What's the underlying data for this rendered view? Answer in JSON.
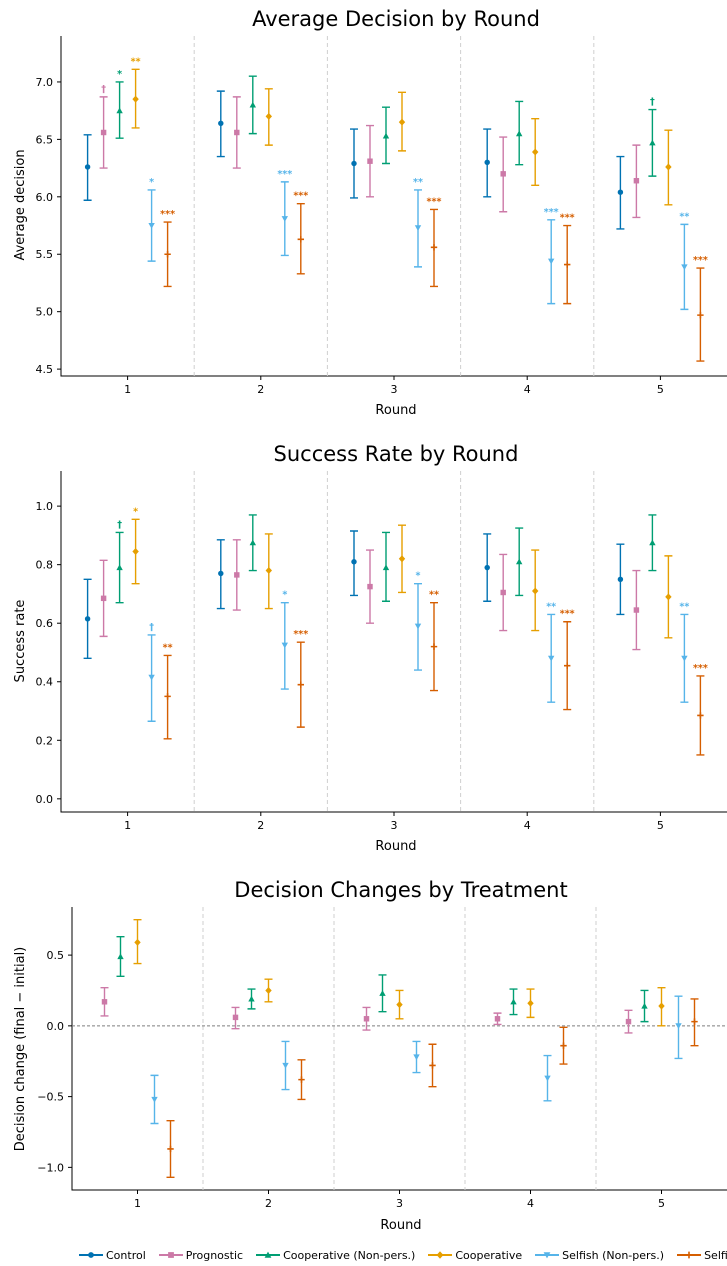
{
  "colors": {
    "Control": "#0072b2",
    "Prognostic": "#cc79a7",
    "Cooperative (Non-pers.)": "#009e73",
    "Cooperative": "#e69f00",
    "Selfish (Non-pers.)": "#56b4e9",
    "Selfish": "#d55e00"
  },
  "legend": [
    {
      "name": "Control",
      "marker": "circle"
    },
    {
      "name": "Prognostic",
      "marker": "square"
    },
    {
      "name": "Cooperative (Non-pers.)",
      "marker": "triangle-up"
    },
    {
      "name": "Cooperative",
      "marker": "diamond"
    },
    {
      "name": "Selfish (Non-pers.)",
      "marker": "triangle-down"
    },
    {
      "name": "Selfish",
      "marker": "plus"
    }
  ],
  "chart_data": [
    {
      "type": "scatter",
      "title": "Average Decision by Round",
      "xlabel": "Round",
      "ylabel": "Average decision",
      "categories": [
        "1",
        "2",
        "3",
        "4",
        "5"
      ],
      "ylim": [
        4.44,
        7.4
      ],
      "yticks": [
        "4.5",
        "5.0",
        "5.5",
        "6.0",
        "6.5",
        "7.0"
      ],
      "series": [
        {
          "name": "Control",
          "values": [
            6.26,
            6.64,
            6.29,
            6.3,
            6.04
          ],
          "lower": [
            5.97,
            6.35,
            5.99,
            6.0,
            5.72
          ],
          "upper": [
            6.54,
            6.92,
            6.59,
            6.59,
            6.35
          ],
          "sig": [
            "",
            "",
            "",
            "",
            ""
          ]
        },
        {
          "name": "Prognostic",
          "values": [
            6.56,
            6.56,
            6.31,
            6.2,
            6.14
          ],
          "lower": [
            6.25,
            6.25,
            6.0,
            5.87,
            5.82
          ],
          "upper": [
            6.87,
            6.87,
            6.62,
            6.52,
            6.45
          ],
          "sig": [
            "†",
            "",
            "",
            "",
            ""
          ]
        },
        {
          "name": "Cooperative (Non-pers.)",
          "values": [
            6.75,
            6.8,
            6.53,
            6.55,
            6.47
          ],
          "lower": [
            6.51,
            6.55,
            6.29,
            6.28,
            6.18
          ],
          "upper": [
            7.0,
            7.05,
            6.78,
            6.83,
            6.76
          ],
          "sig": [
            "*",
            "",
            "",
            "",
            "†"
          ]
        },
        {
          "name": "Cooperative",
          "values": [
            6.85,
            6.7,
            6.65,
            6.39,
            6.26
          ],
          "lower": [
            6.6,
            6.45,
            6.4,
            6.1,
            5.93
          ],
          "upper": [
            7.11,
            6.94,
            6.91,
            6.68,
            6.58
          ],
          "sig": [
            "**",
            "",
            "",
            "",
            ""
          ]
        },
        {
          "name": "Selfish (Non-pers.)",
          "values": [
            5.75,
            5.81,
            5.73,
            5.44,
            5.39
          ],
          "lower": [
            5.44,
            5.49,
            5.39,
            5.07,
            5.02
          ],
          "upper": [
            6.06,
            6.13,
            6.06,
            5.8,
            5.76
          ],
          "sig": [
            "*",
            "***",
            "**",
            "***",
            "**"
          ]
        },
        {
          "name": "Selfish",
          "values": [
            5.5,
            5.63,
            5.56,
            5.41,
            4.97
          ],
          "lower": [
            5.22,
            5.33,
            5.22,
            5.07,
            4.57
          ],
          "upper": [
            5.78,
            5.94,
            5.89,
            5.75,
            5.38
          ],
          "sig": [
            "***",
            "***",
            "***",
            "***",
            "***"
          ]
        }
      ]
    },
    {
      "type": "scatter",
      "title": "Success Rate by Round",
      "xlabel": "Round",
      "ylabel": "Success rate",
      "categories": [
        "1",
        "2",
        "3",
        "4",
        "5"
      ],
      "ylim": [
        -0.045,
        1.12
      ],
      "yticks": [
        "0.0",
        "0.2",
        "0.4",
        "0.6",
        "0.8",
        "1.0"
      ],
      "series": [
        {
          "name": "Control",
          "values": [
            0.615,
            0.77,
            0.81,
            0.79,
            0.75
          ],
          "lower": [
            0.48,
            0.65,
            0.695,
            0.675,
            0.63
          ],
          "upper": [
            0.75,
            0.885,
            0.915,
            0.905,
            0.87
          ],
          "sig": [
            "",
            "",
            "",
            "",
            ""
          ]
        },
        {
          "name": "Prognostic",
          "values": [
            0.685,
            0.765,
            0.725,
            0.705,
            0.645
          ],
          "lower": [
            0.555,
            0.645,
            0.6,
            0.575,
            0.51
          ],
          "upper": [
            0.815,
            0.885,
            0.85,
            0.835,
            0.78
          ],
          "sig": [
            "",
            "",
            "",
            "",
            ""
          ]
        },
        {
          "name": "Cooperative (Non-pers.)",
          "values": [
            0.79,
            0.875,
            0.79,
            0.81,
            0.875
          ],
          "lower": [
            0.67,
            0.78,
            0.675,
            0.695,
            0.78
          ],
          "upper": [
            0.91,
            0.97,
            0.91,
            0.925,
            0.97
          ],
          "sig": [
            "†",
            "",
            "",
            "",
            ""
          ]
        },
        {
          "name": "Cooperative",
          "values": [
            0.845,
            0.78,
            0.82,
            0.71,
            0.69
          ],
          "lower": [
            0.735,
            0.65,
            0.705,
            0.575,
            0.55
          ],
          "upper": [
            0.955,
            0.905,
            0.935,
            0.85,
            0.83
          ],
          "sig": [
            "*",
            "",
            "",
            "",
            ""
          ]
        },
        {
          "name": "Selfish (Non-pers.)",
          "values": [
            0.415,
            0.525,
            0.59,
            0.48,
            0.48
          ],
          "lower": [
            0.265,
            0.375,
            0.44,
            0.33,
            0.33
          ],
          "upper": [
            0.56,
            0.67,
            0.735,
            0.63,
            0.63
          ],
          "sig": [
            "†",
            "*",
            "*",
            "**",
            "**"
          ]
        },
        {
          "name": "Selfish",
          "values": [
            0.35,
            0.39,
            0.52,
            0.455,
            0.285
          ],
          "lower": [
            0.205,
            0.245,
            0.37,
            0.305,
            0.15
          ],
          "upper": [
            0.49,
            0.535,
            0.67,
            0.605,
            0.42
          ],
          "sig": [
            "**",
            "***",
            "**",
            "***",
            "***"
          ]
        }
      ]
    },
    {
      "type": "scatter",
      "title": "Decision Changes by Treatment",
      "xlabel": "Round",
      "ylabel": "Decision change (final − initial)",
      "categories": [
        "1",
        "2",
        "3",
        "4",
        "5"
      ],
      "ylim": [
        -1.16,
        0.84
      ],
      "yticks": [
        "−1.0",
        "−0.5",
        "0.0",
        "0.5"
      ],
      "reference_line": 0,
      "series": [
        {
          "name": "Prognostic",
          "values": [
            0.17,
            0.06,
            0.05,
            0.05,
            0.03
          ],
          "lower": [
            0.07,
            -0.02,
            -0.03,
            0.01,
            -0.05
          ],
          "upper": [
            0.27,
            0.13,
            0.13,
            0.09,
            0.11
          ],
          "sig": [
            "",
            "",
            "",
            "",
            ""
          ]
        },
        {
          "name": "Cooperative (Non-pers.)",
          "values": [
            0.49,
            0.19,
            0.23,
            0.17,
            0.14
          ],
          "lower": [
            0.35,
            0.12,
            0.1,
            0.08,
            0.03
          ],
          "upper": [
            0.63,
            0.26,
            0.36,
            0.26,
            0.25
          ],
          "sig": [
            "",
            "",
            "",
            "",
            ""
          ]
        },
        {
          "name": "Cooperative",
          "values": [
            0.59,
            0.25,
            0.15,
            0.16,
            0.14
          ],
          "lower": [
            0.44,
            0.17,
            0.05,
            0.06,
            0.0
          ],
          "upper": [
            0.75,
            0.33,
            0.25,
            0.26,
            0.27
          ],
          "sig": [
            "",
            "",
            "",
            "",
            ""
          ]
        },
        {
          "name": "Selfish (Non-pers.)",
          "values": [
            -0.52,
            -0.28,
            -0.22,
            -0.37,
            0.0
          ],
          "lower": [
            -0.69,
            -0.45,
            -0.33,
            -0.53,
            -0.23
          ],
          "upper": [
            -0.35,
            -0.11,
            -0.11,
            -0.21,
            0.21
          ],
          "sig": [
            "",
            "",
            "",
            "",
            ""
          ]
        },
        {
          "name": "Selfish",
          "values": [
            -0.87,
            -0.38,
            -0.28,
            -0.14,
            0.03
          ],
          "lower": [
            -1.07,
            -0.52,
            -0.43,
            -0.27,
            -0.14
          ],
          "upper": [
            -0.67,
            -0.24,
            -0.13,
            -0.01,
            0.19
          ],
          "sig": [
            "",
            "",
            "",
            "",
            ""
          ]
        }
      ]
    }
  ]
}
